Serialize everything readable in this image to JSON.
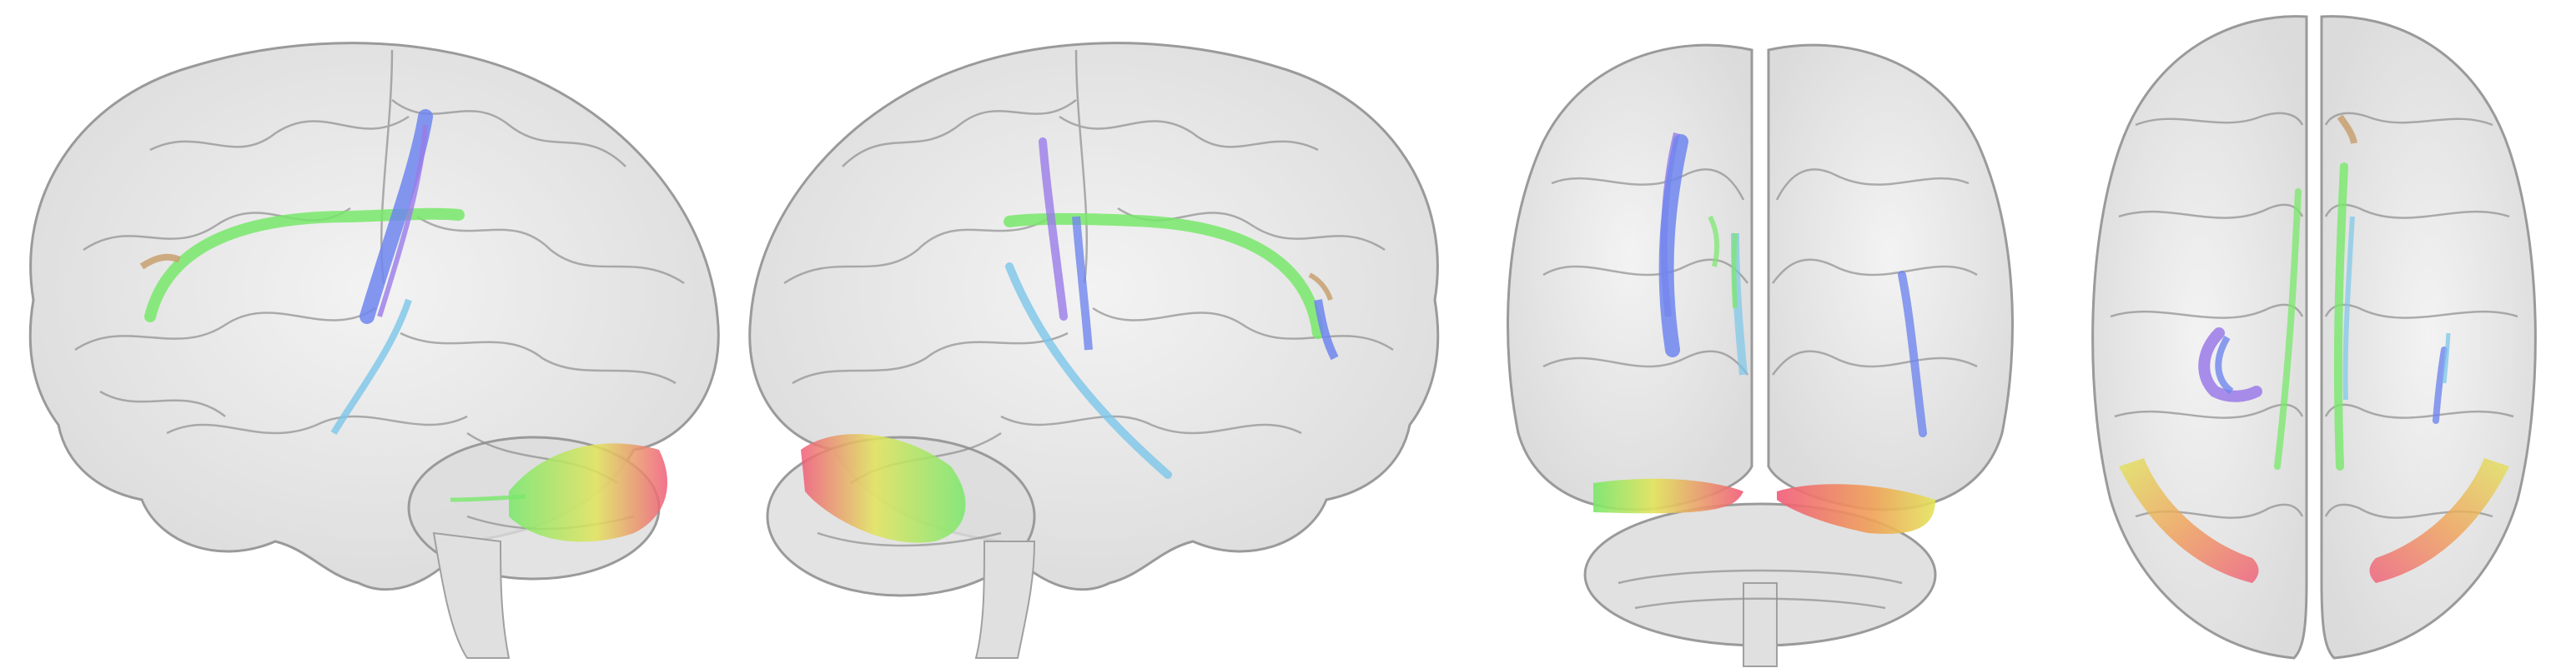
{
  "figure": {
    "views": [
      {
        "name": "left-lateral",
        "tracts": [
          "green",
          "blue",
          "violet",
          "cyan",
          "yellow-orange",
          "tan"
        ]
      },
      {
        "name": "right-lateral",
        "tracts": [
          "green",
          "blue",
          "violet",
          "cyan",
          "yellow-orange",
          "tan"
        ]
      },
      {
        "name": "posterior",
        "tracts": [
          "blue",
          "green",
          "cyan",
          "orange",
          "red-pink"
        ]
      },
      {
        "name": "superior",
        "tracts": [
          "blue",
          "green",
          "cyan",
          "tan",
          "orange",
          "pink"
        ]
      }
    ],
    "colors": {
      "background": "#ffffff",
      "brain": "#d8d8d8",
      "brain_outline": "#9a9a9a",
      "green": "#78e86a",
      "blue": "#6f86ee",
      "violet": "#9a7ae8",
      "cyan": "#7cc6ea",
      "yellow": "#e2e45a",
      "orange": "#f0a056",
      "red": "#f05a78",
      "tan": "#c8a070"
    }
  }
}
